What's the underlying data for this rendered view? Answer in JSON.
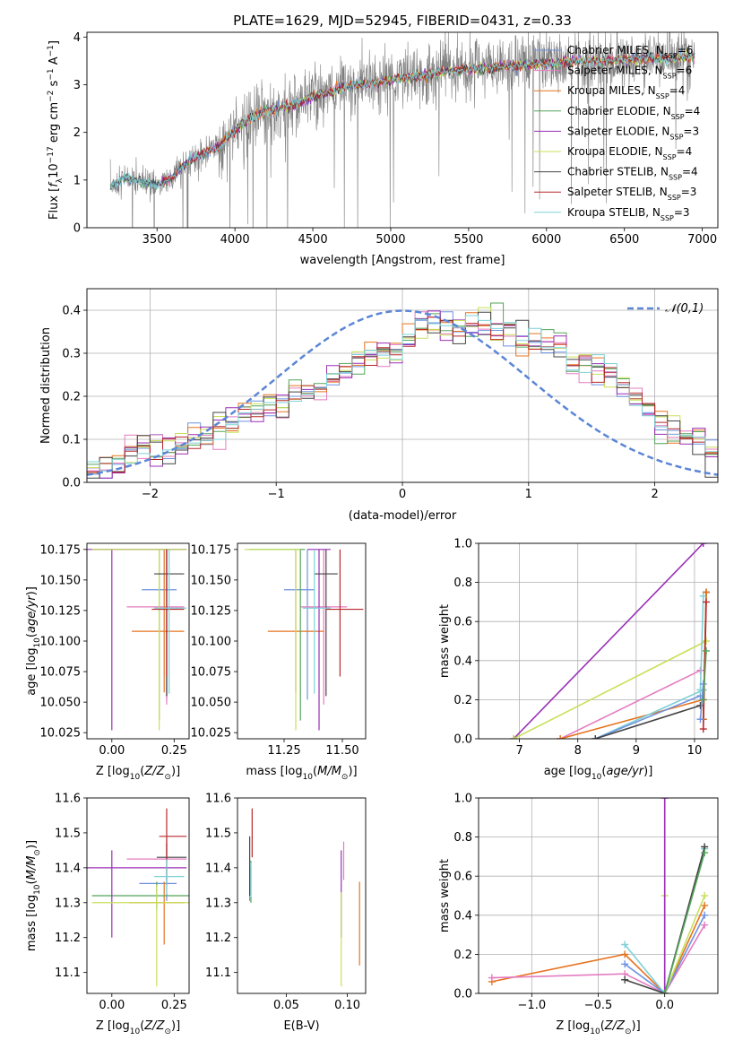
{
  "colors": {
    "blue": "#6f93e0",
    "pink": "#e47cc0",
    "orange": "#e6731f",
    "green": "#55a45a",
    "purple": "#9a2fb5",
    "yellow": "#c8e05a",
    "dark": "#444444",
    "red": "#b8282a",
    "cyan": "#7fd0d6",
    "spectrum_gray": "#7f7f7f",
    "normal_curve": "#5b86d6"
  },
  "chart_data": [
    {
      "id": "spectrum",
      "type": "line",
      "title": "PLATE=1629, MJD=52945, FIBERID=0431, z=0.33",
      "xlabel": "wavelength [Angstrom, rest frame]",
      "ylabel": "Flux [f_λ 10^-17 erg cm^-2 s^-1 A^-1]",
      "xlim": [
        3050,
        7100
      ],
      "ylim": [
        0,
        4.1
      ],
      "xticks": [
        "3500",
        "4000",
        "4500",
        "5000",
        "5500",
        "6000",
        "6500",
        "7000"
      ],
      "yticks": [
        "0",
        "1",
        "2",
        "3",
        "4"
      ],
      "grid": false,
      "legend_position": "top-right",
      "legend": [
        {
          "text": "Chabrier MILES, N",
          "sub": "SSP",
          "suffix": "=6",
          "color": "blue"
        },
        {
          "text": "Salpeter MILES, N",
          "sub": "SSP",
          "suffix": "=6",
          "color": "pink"
        },
        {
          "text": "Kroupa MILES, N",
          "sub": "SSP",
          "suffix": "=4",
          "color": "orange"
        },
        {
          "text": "Chabrier ELODIE, N",
          "sub": "SSP",
          "suffix": "=4",
          "color": "green"
        },
        {
          "text": "Salpeter ELODIE, N",
          "sub": "SSP",
          "suffix": "=3",
          "color": "purple"
        },
        {
          "text": "Kroupa ELODIE, N",
          "sub": "SSP",
          "suffix": "=4",
          "color": "yellow"
        },
        {
          "text": "Chabrier STELIB, N",
          "sub": "SSP",
          "suffix": "=4",
          "color": "dark"
        },
        {
          "text": "Salpeter STELIB, N",
          "sub": "SSP",
          "suffix": "=3",
          "color": "red"
        },
        {
          "text": "Kroupa STELIB, N",
          "sub": "SSP",
          "suffix": "=3",
          "color": "cyan"
        }
      ],
      "model_trend": {
        "wavelength": [
          3200,
          3300,
          3400,
          3500,
          3600,
          3700,
          3800,
          3900,
          4000,
          4100,
          4200,
          4300,
          4400,
          4500,
          4600,
          4700,
          4800,
          4900,
          5000,
          5200,
          5400,
          5600,
          5800,
          6000,
          6200,
          6400,
          6600,
          6800,
          6950
        ],
        "flux": [
          0.85,
          1.05,
          0.95,
          0.9,
          1.05,
          1.4,
          1.55,
          1.7,
          2.05,
          2.3,
          2.45,
          2.5,
          2.6,
          2.75,
          2.85,
          2.95,
          3.0,
          3.05,
          3.1,
          3.2,
          3.3,
          3.35,
          3.4,
          3.45,
          3.5,
          3.5,
          3.55,
          3.55,
          3.6
        ]
      },
      "data_range_A": [
        3200,
        6950
      ]
    },
    {
      "id": "residuals",
      "type": "histogram",
      "xlabel": "(data-model)/error",
      "ylabel": "Normed distribution",
      "xlim": [
        -2.5,
        2.5
      ],
      "ylim": [
        0,
        0.45
      ],
      "xticks": [
        "−2",
        "−1",
        "0",
        "1",
        "2"
      ],
      "yticks": [
        "0.0",
        "0.1",
        "0.2",
        "0.3",
        "0.4"
      ],
      "grid": true,
      "legend_position": "top-right",
      "normal_label": "𝒩(0,1)",
      "bin_width": 0.1,
      "hist_envelope": [
        0.03,
        0.035,
        0.045,
        0.06,
        0.075,
        0.08,
        0.075,
        0.09,
        0.1,
        0.12,
        0.13,
        0.14,
        0.155,
        0.17,
        0.18,
        0.19,
        0.2,
        0.21,
        0.225,
        0.24,
        0.27,
        0.29,
        0.3,
        0.3,
        0.31,
        0.33,
        0.36,
        0.38,
        0.36,
        0.35,
        0.36,
        0.37,
        0.36,
        0.34,
        0.33,
        0.33,
        0.32,
        0.31,
        0.28,
        0.27,
        0.26,
        0.25,
        0.22,
        0.19,
        0.17,
        0.14,
        0.12,
        0.11,
        0.09,
        0.07
      ]
    },
    {
      "id": "age-vs-Z",
      "type": "scatter",
      "xlabel": "Z [log10(Z/Z⊙)]",
      "ylabel": "age [log10(age/yr)]",
      "xlim": [
        -0.1,
        0.31
      ],
      "ylim": [
        10.02,
        10.18
      ],
      "xticks": [
        "0.00",
        "0.25"
      ],
      "yticks": [
        "10.025",
        "10.050",
        "10.075",
        "10.100",
        "10.125",
        "10.150",
        "10.175"
      ],
      "points": [
        {
          "series": "blue",
          "x": 0.22,
          "xerr": [
            0.1,
            0.04
          ],
          "y": 10.142,
          "yerr": [
            0.09,
            0.033
          ]
        },
        {
          "series": "pink",
          "x": 0.22,
          "xerr": [
            0.16,
            0.07
          ],
          "y": 10.128,
          "yerr": [
            0.08,
            0.047
          ]
        },
        {
          "series": "orange",
          "x": 0.21,
          "xerr": [
            0.13,
            0.08
          ],
          "y": 10.108,
          "yerr": [
            0.05,
            0.067
          ]
        },
        {
          "series": "green",
          "x": 0.19,
          "xerr": [
            0.27,
            0.11
          ],
          "y": 10.175,
          "yerr": [
            0.14,
            0.0
          ]
        },
        {
          "series": "purple",
          "x": 0.0,
          "xerr": [
            0.1,
            0.3
          ],
          "y": 10.175,
          "yerr": [
            0.148,
            0.0
          ]
        },
        {
          "series": "yellow",
          "x": 0.19,
          "xerr": [
            0.27,
            0.11
          ],
          "y": 10.175,
          "yerr": [
            0.148,
            0.0
          ]
        },
        {
          "series": "dark",
          "x": 0.22,
          "xerr": [
            0.05,
            0.07
          ],
          "y": 10.155,
          "yerr": [
            0.1,
            0.02
          ]
        },
        {
          "series": "red",
          "x": 0.22,
          "xerr": [
            0.06,
            0.07
          ],
          "y": 10.126,
          "yerr": [
            0.055,
            0.049
          ]
        },
        {
          "series": "cyan",
          "x": 0.23,
          "xerr": [
            0.06,
            0.07
          ],
          "y": 10.127,
          "yerr": [
            0.07,
            0.048
          ]
        }
      ]
    },
    {
      "id": "age-vs-mass",
      "type": "scatter",
      "xlabel": "mass [log10(M/M⊙)]",
      "ylabel": "",
      "xlim": [
        11.05,
        11.6
      ],
      "ylim": [
        10.02,
        10.18
      ],
      "xticks": [
        "11.25",
        "11.50"
      ],
      "yticks": [
        "10.025",
        "10.050",
        "10.075",
        "10.100",
        "10.125",
        "10.150",
        "10.175"
      ],
      "points": [
        {
          "series": "blue",
          "x": 11.35,
          "xerr": [
            0.1,
            0.03
          ],
          "y": 10.142,
          "yerr": [
            0.09,
            0.033
          ]
        },
        {
          "series": "pink",
          "x": 11.42,
          "xerr": [
            0.1,
            0.1
          ],
          "y": 10.128,
          "yerr": [
            0.08,
            0.047
          ]
        },
        {
          "series": "orange",
          "x": 11.3,
          "xerr": [
            0.12,
            0.12
          ],
          "y": 10.108,
          "yerr": [
            0.05,
            0.067
          ]
        },
        {
          "series": "green",
          "x": 11.32,
          "xerr": [
            0.22,
            0.02
          ],
          "y": 10.175,
          "yerr": [
            0.14,
            0.0
          ]
        },
        {
          "series": "purple",
          "x": 11.4,
          "xerr": [
            0.05,
            0.05
          ],
          "y": 10.175,
          "yerr": [
            0.148,
            0.0
          ]
        },
        {
          "series": "yellow",
          "x": 11.3,
          "xerr": [
            0.22,
            0.02
          ],
          "y": 10.175,
          "yerr": [
            0.148,
            0.0
          ]
        },
        {
          "series": "dark",
          "x": 11.43,
          "xerr": [
            0.05,
            0.05
          ],
          "y": 10.155,
          "yerr": [
            0.1,
            0.02
          ]
        },
        {
          "series": "red",
          "x": 11.49,
          "xerr": [
            0.06,
            0.1
          ],
          "y": 10.126,
          "yerr": [
            0.055,
            0.049
          ]
        },
        {
          "series": "cyan",
          "x": 11.38,
          "xerr": [
            0.05,
            0.07
          ],
          "y": 10.127,
          "yerr": [
            0.07,
            0.048
          ]
        }
      ]
    },
    {
      "id": "weight-vs-age",
      "type": "line",
      "xlabel": "age [log10(age/yr)]",
      "ylabel": "mass weight",
      "xlim": [
        6.3,
        10.4
      ],
      "ylim": [
        0,
        1
      ],
      "xticks": [
        "7",
        "8",
        "9",
        "10"
      ],
      "yticks": [
        "0.0",
        "0.2",
        "0.4",
        "0.6",
        "0.8",
        "1.0"
      ],
      "grid": true,
      "series": [
        {
          "name": "purple",
          "x": [
            6.9,
            10.15
          ],
          "y": [
            0.0,
            1.0
          ]
        },
        {
          "name": "yellow",
          "x": [
            6.9,
            10.2
          ],
          "y": [
            0.0,
            0.5
          ]
        },
        {
          "name": "pink",
          "x": [
            7.7,
            10.1
          ],
          "y": [
            0.0,
            0.35
          ]
        },
        {
          "name": "orange",
          "x": [
            7.7,
            10.15
          ],
          "y": [
            0.0,
            0.2
          ]
        },
        {
          "name": "cyan",
          "x": [
            8.3,
            10.15
          ],
          "y": [
            0.0,
            0.25
          ]
        },
        {
          "name": "blue",
          "x": [
            8.3,
            10.1
          ],
          "y": [
            0.0,
            0.22
          ]
        },
        {
          "name": "dark",
          "x": [
            8.3,
            10.1
          ],
          "y": [
            0.0,
            0.17
          ]
        },
        {
          "name": "dark",
          "x": [
            10.15,
            10.2
          ],
          "y": [
            0.1,
            0.75
          ]
        },
        {
          "name": "cyan",
          "x": [
            10.1,
            10.15
          ],
          "y": [
            0.25,
            0.73
          ]
        },
        {
          "name": "orange",
          "x": [
            10.15,
            10.2
          ],
          "y": [
            0.1,
            0.75
          ]
        },
        {
          "name": "red",
          "x": [
            10.15,
            10.2
          ],
          "y": [
            0.05,
            0.7
          ]
        },
        {
          "name": "blue",
          "x": [
            10.1,
            10.15
          ],
          "y": [
            0.1,
            0.28
          ]
        },
        {
          "name": "green",
          "x": [
            10.15,
            10.2
          ],
          "y": [
            0.2,
            0.45
          ]
        }
      ]
    },
    {
      "id": "mass-vs-Z",
      "type": "scatter",
      "xlabel": "Z [log10(Z/Z⊙)]",
      "ylabel": "mass [log10(M/M⊙)]",
      "xlim": [
        -0.1,
        0.31
      ],
      "ylim": [
        11.04,
        11.6
      ],
      "xticks": [
        "0.00",
        "0.25"
      ],
      "yticks": [
        "11.1",
        "11.2",
        "11.3",
        "11.4",
        "11.5",
        "11.6"
      ],
      "points": [
        {
          "series": "blue",
          "x": 0.22,
          "xerr": [
            0.11,
            0.04
          ],
          "y": 11.355,
          "yerr": [
            0.05,
            0.05
          ]
        },
        {
          "series": "pink",
          "x": 0.22,
          "xerr": [
            0.16,
            0.08
          ],
          "y": 11.425,
          "yerr": [
            0.06,
            0.06
          ]
        },
        {
          "series": "orange",
          "x": 0.21,
          "xerr": [
            0.14,
            0.08
          ],
          "y": 11.3,
          "yerr": [
            0.12,
            0.06
          ]
        },
        {
          "series": "green",
          "x": 0.18,
          "xerr": [
            0.26,
            0.13
          ],
          "y": 11.32,
          "yerr": [
            0.04,
            0.04
          ]
        },
        {
          "series": "purple",
          "x": 0.0,
          "xerr": [
            0.1,
            0.3
          ],
          "y": 11.4,
          "yerr": [
            0.2,
            0.05
          ]
        },
        {
          "series": "yellow",
          "x": 0.18,
          "xerr": [
            0.26,
            0.13
          ],
          "y": 11.3,
          "yerr": [
            0.24,
            0.05
          ]
        },
        {
          "series": "dark",
          "x": 0.22,
          "xerr": [
            0.04,
            0.08
          ],
          "y": 11.43,
          "yerr": [
            0.08,
            0.04
          ]
        },
        {
          "series": "red",
          "x": 0.22,
          "xerr": [
            0.03,
            0.08
          ],
          "y": 11.49,
          "yerr": [
            0.07,
            0.08
          ]
        },
        {
          "series": "cyan",
          "x": 0.22,
          "xerr": [
            0.05,
            0.07
          ],
          "y": 11.375,
          "yerr": [
            0.05,
            0.05
          ]
        }
      ]
    },
    {
      "id": "mass-vs-EBV",
      "type": "scatter",
      "xlabel": "E(B-V)",
      "ylabel": "",
      "xlim": [
        0.01,
        0.115
      ],
      "ylim": [
        11.04,
        11.6
      ],
      "xticks": [
        "0.05",
        "0.10"
      ],
      "yticks": [
        "11.1",
        "11.2",
        "11.3",
        "11.4",
        "11.5",
        "11.6"
      ],
      "points": [
        {
          "series": "blue",
          "x": 0.02,
          "y": 11.355,
          "yerr": [
            0.05,
            0.05
          ]
        },
        {
          "series": "pink",
          "x": 0.097,
          "y": 11.425,
          "yerr": [
            0.06,
            0.05
          ]
        },
        {
          "series": "orange",
          "x": 0.11,
          "y": 11.3,
          "yerr": [
            0.18,
            0.06
          ]
        },
        {
          "series": "green",
          "x": 0.021,
          "y": 11.34,
          "yerr": [
            0.04,
            0.08
          ]
        },
        {
          "series": "purple",
          "x": 0.095,
          "y": 11.4,
          "yerr": [
            0.2,
            0.05
          ]
        },
        {
          "series": "yellow",
          "x": 0.095,
          "y": 11.3,
          "yerr": [
            0.24,
            0.03
          ]
        },
        {
          "series": "dark",
          "x": 0.02,
          "y": 11.43,
          "yerr": [
            0.11,
            0.06
          ]
        },
        {
          "series": "red",
          "x": 0.022,
          "y": 11.49,
          "yerr": [
            0.06,
            0.08
          ]
        },
        {
          "series": "cyan",
          "x": 0.021,
          "y": 11.375,
          "yerr": [
            0.06,
            0.04
          ]
        }
      ]
    },
    {
      "id": "weight-vs-Z",
      "type": "line",
      "xlabel": "Z [log10(Z/Z⊙)]",
      "ylabel": "mass weight",
      "xlim": [
        -1.4,
        0.4
      ],
      "ylim": [
        0,
        1
      ],
      "xticks": [
        "−1.0",
        "−0.5",
        "0.0"
      ],
      "yticks": [
        "0.0",
        "0.2",
        "0.4",
        "0.6",
        "0.8",
        "1.0"
      ],
      "grid": true,
      "series": [
        {
          "name": "orange",
          "x": [
            -1.3,
            -0.3,
            0.0,
            0.3
          ],
          "y": [
            0.06,
            0.2,
            0.0,
            0.45
          ]
        },
        {
          "name": "pink",
          "x": [
            -1.3,
            -0.3,
            0.0,
            0.3
          ],
          "y": [
            0.08,
            0.1,
            0.0,
            0.35
          ]
        },
        {
          "name": "cyan",
          "x": [
            -0.3,
            0.0,
            0.3
          ],
          "y": [
            0.25,
            0.0,
            0.74
          ]
        },
        {
          "name": "blue",
          "x": [
            -0.3,
            0.0,
            0.3
          ],
          "y": [
            0.15,
            0.0,
            0.4
          ]
        },
        {
          "name": "dark",
          "x": [
            -0.3,
            0.0,
            0.3
          ],
          "y": [
            0.07,
            0.0,
            0.75
          ]
        },
        {
          "name": "yellow",
          "x": [
            0.0,
            0.0,
            0.3
          ],
          "y": [
            0.5,
            0.0,
            0.5
          ]
        },
        {
          "name": "purple",
          "x": [
            0.0,
            0.0
          ],
          "y": [
            1.0,
            0.0
          ]
        },
        {
          "name": "green",
          "x": [
            0.0,
            0.3
          ],
          "y": [
            0.0,
            0.72
          ]
        }
      ]
    }
  ]
}
